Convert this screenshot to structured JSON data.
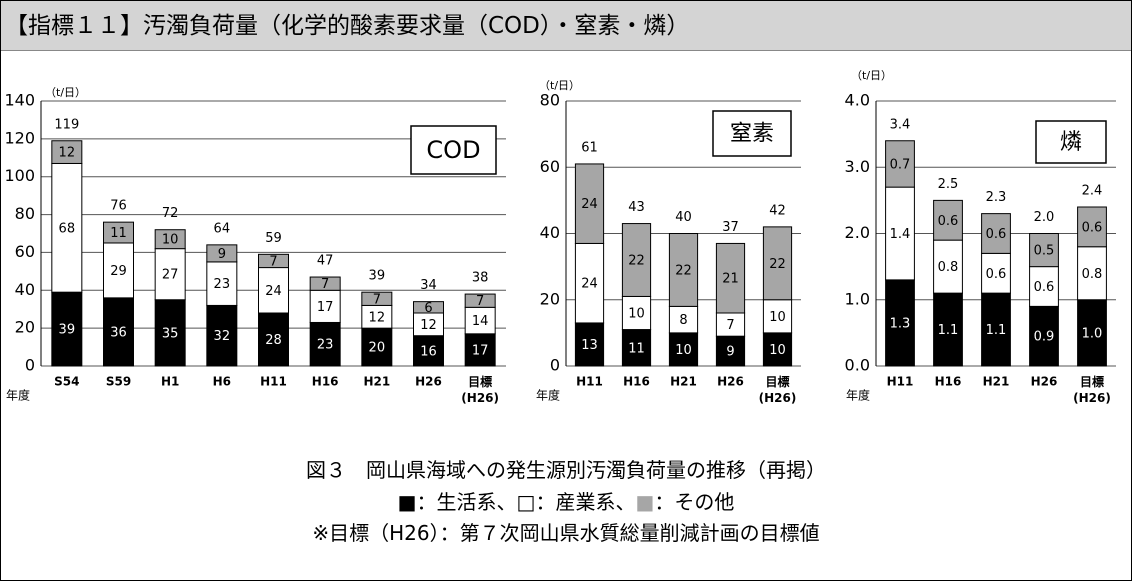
{
  "header": {
    "title": "【指標１１】汚濁負荷量（化学的酸素要求量（COD）・窒素・燐）"
  },
  "chart_data": [
    {
      "type": "stacked_bar",
      "label": "COD",
      "unit": "（t/日）",
      "xlabel": "年度",
      "categories": [
        "S54",
        "S59",
        "H1",
        "H6",
        "H11",
        "H16",
        "H21",
        "H26",
        "目標(H26)"
      ],
      "series": [
        {
          "color": "#000000",
          "values": [
            39,
            36,
            35,
            32,
            28,
            23,
            20,
            16,
            17
          ]
        },
        {
          "color": "#ffffff",
          "values": [
            68,
            29,
            27,
            23,
            24,
            17,
            12,
            12,
            14
          ]
        },
        {
          "color": "#a6a6a6",
          "values": [
            12,
            11,
            10,
            9,
            7,
            7,
            7,
            6,
            7
          ]
        }
      ],
      "totals": [
        119,
        76,
        72,
        64,
        59,
        47,
        39,
        34,
        38
      ],
      "ylim": [
        0,
        140
      ],
      "yticks": [
        0,
        20,
        40,
        60,
        80,
        100,
        120,
        140
      ],
      "grid": true
    },
    {
      "type": "stacked_bar",
      "label": "窒素",
      "unit": "（t/日）",
      "xlabel": "年度",
      "categories": [
        "H11",
        "H16",
        "H21",
        "H26",
        "目標(H26)"
      ],
      "series": [
        {
          "color": "#000000",
          "values": [
            13,
            11,
            10,
            9,
            10
          ]
        },
        {
          "color": "#ffffff",
          "values": [
            24,
            10,
            8,
            7,
            10
          ]
        },
        {
          "color": "#a6a6a6",
          "values": [
            24,
            22,
            22,
            21,
            22
          ]
        }
      ],
      "totals": [
        61,
        43,
        40,
        37,
        42
      ],
      "ylim": [
        0,
        80
      ],
      "yticks": [
        0,
        20,
        40,
        60,
        80
      ],
      "grid": true
    },
    {
      "type": "stacked_bar",
      "label": "燐",
      "unit": "（t/日）",
      "xlabel": "年度",
      "categories": [
        "H11",
        "H16",
        "H21",
        "H26",
        "目標(H26)"
      ],
      "series": [
        {
          "color": "#000000",
          "values": [
            1.3,
            1.1,
            1.1,
            0.9,
            1.0
          ],
          "value_labels": [
            "1.3",
            "1.1",
            "1.1",
            "0.9",
            "1.0"
          ]
        },
        {
          "color": "#ffffff",
          "values": [
            1.4,
            0.8,
            0.6,
            0.6,
            0.8
          ],
          "value_labels": [
            "1.4",
            "0.8",
            "0.6",
            "0.6",
            "0.8"
          ]
        },
        {
          "color": "#a6a6a6",
          "values": [
            0.7,
            0.6,
            0.6,
            0.5,
            0.6
          ],
          "value_labels": [
            "0.7",
            "0.6",
            "0.6",
            "0.5",
            "0.6"
          ]
        }
      ],
      "totals": [
        3.4,
        2.5,
        2.3,
        2.0,
        2.4
      ],
      "total_labels": [
        "3.4",
        "2.5",
        "2.3",
        "2.0",
        "2.4"
      ],
      "ylim": [
        0,
        4
      ],
      "yticks": [
        {
          "value": 0,
          "label": "0.0"
        },
        {
          "value": 1,
          "label": "1.0"
        },
        {
          "value": 2,
          "label": "2.0"
        },
        {
          "value": 3,
          "label": "3.0"
        },
        {
          "value": 4,
          "label": "4.0"
        }
      ],
      "grid": true
    }
  ],
  "caption": {
    "title": "図３　岡山県海域への発生源別汚濁負荷量の推移（再掲）",
    "legend": [
      {
        "symbol": "■",
        "color": "#000000",
        "text": "：生活系、"
      },
      {
        "symbol": "□",
        "color": "#000000",
        "text": "：産業系、"
      },
      {
        "symbol": "■",
        "color": "#a6a6a6",
        "text": "：その他"
      }
    ],
    "note": "※目標（H26）：第７次岡山県水質総量削減計画の目標値"
  }
}
